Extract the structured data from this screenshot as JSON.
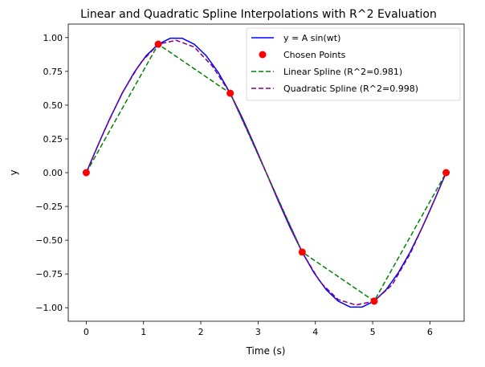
{
  "chart_data": {
    "type": "line",
    "title": "Linear and Quadratic Spline Interpolations with R^2 Evaluation",
    "xlabel": "Time (s)",
    "ylabel": "y",
    "xlim": [
      -0.314,
      6.597
    ],
    "ylim": [
      -1.1,
      1.1
    ],
    "xticks": [
      0,
      1,
      2,
      3,
      4,
      5,
      6
    ],
    "xtick_labels": [
      "0",
      "1",
      "2",
      "3",
      "4",
      "5",
      "6"
    ],
    "yticks": [
      -1.0,
      -0.75,
      -0.5,
      -0.25,
      0.0,
      0.25,
      0.5,
      0.75,
      1.0
    ],
    "ytick_labels": [
      "−1.00",
      "−0.75",
      "−0.50",
      "−0.25",
      "0.00",
      "0.25",
      "0.50",
      "0.75",
      "1.00"
    ],
    "grid": false,
    "legend_position": "top-right",
    "series": [
      {
        "name": "y = A sin(wt)",
        "style": "solid-line",
        "color": "#0000ff",
        "x": [
          0,
          0.209,
          0.419,
          0.628,
          0.838,
          1.047,
          1.257,
          1.466,
          1.676,
          1.885,
          2.094,
          2.304,
          2.513,
          2.723,
          2.932,
          3.142,
          3.351,
          3.56,
          3.77,
          3.979,
          4.189,
          4.398,
          4.608,
          4.817,
          5.027,
          5.236,
          5.445,
          5.655,
          5.864,
          6.074,
          6.283
        ],
        "y": [
          0,
          0.208,
          0.407,
          0.588,
          0.743,
          0.866,
          0.951,
          0.995,
          0.995,
          0.951,
          0.866,
          0.743,
          0.588,
          0.407,
          0.208,
          0,
          -0.208,
          -0.407,
          -0.588,
          -0.743,
          -0.866,
          -0.951,
          -0.995,
          -0.995,
          -0.951,
          -0.866,
          -0.743,
          -0.588,
          -0.407,
          -0.208,
          0
        ]
      },
      {
        "name": "Chosen Points",
        "style": "scatter",
        "color": "#ff0000",
        "x": [
          0,
          1.257,
          2.513,
          3.77,
          5.027,
          6.283
        ],
        "y": [
          0,
          0.951,
          0.588,
          -0.588,
          -0.951,
          0
        ]
      },
      {
        "name": "Linear Spline (R^2=0.981)",
        "style": "dashed-line",
        "color": "#008000",
        "x": [
          0,
          1.257,
          2.513,
          3.77,
          5.027,
          6.283
        ],
        "y": [
          0,
          0.951,
          0.588,
          -0.588,
          -0.951,
          0
        ]
      },
      {
        "name": "Quadratic Spline (R^2=0.998)",
        "style": "dashed-line",
        "color": "#800080",
        "x": [
          0,
          0.314,
          0.628,
          0.942,
          1.257,
          1.571,
          1.885,
          2.199,
          2.513,
          2.827,
          3.142,
          3.456,
          3.77,
          4.084,
          4.398,
          4.712,
          5.027,
          5.341,
          5.655,
          5.969,
          6.283
        ],
        "y": [
          0,
          0.31,
          0.59,
          0.81,
          0.951,
          0.98,
          0.93,
          0.79,
          0.588,
          0.3,
          0,
          -0.3,
          -0.588,
          -0.81,
          -0.94,
          -0.98,
          -0.951,
          -0.83,
          -0.6,
          -0.31,
          0
        ]
      }
    ]
  }
}
